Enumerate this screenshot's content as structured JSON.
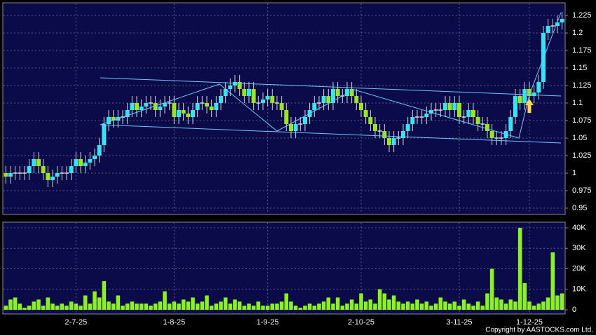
{
  "chart_data": {
    "type": "candlestick",
    "categories": [
      null,
      null,
      null,
      null,
      null,
      null,
      null,
      null,
      null,
      null,
      null,
      null,
      null,
      null,
      null,
      "2-7-25",
      null,
      null,
      null,
      null,
      null,
      null,
      null,
      null,
      null,
      null,
      null,
      null,
      null,
      null,
      null,
      null,
      null,
      null,
      null,
      null,
      "1-8-25",
      null,
      null,
      null,
      null,
      null,
      null,
      null,
      null,
      null,
      null,
      null,
      null,
      null,
      null,
      null,
      null,
      null,
      null,
      null,
      "1-9-25",
      null,
      null,
      null,
      null,
      null,
      null,
      null,
      null,
      null,
      null,
      null,
      null,
      null,
      null,
      null,
      null,
      null,
      null,
      null,
      "2-10-25",
      null,
      null,
      null,
      null,
      null,
      null,
      null,
      null,
      null,
      null,
      null,
      null,
      null,
      null,
      null,
      null,
      null,
      null,
      null,
      null,
      "3-11-25",
      null,
      null,
      null,
      null,
      null,
      null,
      null,
      null,
      null,
      null,
      null,
      null,
      null,
      null,
      "1-12-25",
      null,
      null,
      null,
      null,
      null,
      null,
      null
    ],
    "open": [
      1.0,
      0.995,
      1.0,
      1.0,
      1.0,
      1.0,
      1.01,
      1.02,
      1.01,
      1.0,
      0.99,
      0.995,
      1.0,
      1.0,
      1.0,
      1.01,
      1.02,
      1.01,
      1.015,
      1.02,
      1.025,
      1.04,
      1.07,
      1.08,
      1.075,
      1.08,
      1.08,
      1.09,
      1.1,
      1.09,
      1.095,
      1.1,
      1.1,
      1.09,
      1.095,
      1.1,
      1.1,
      1.08,
      1.09,
      1.085,
      1.08,
      1.09,
      1.1,
      1.1,
      1.095,
      1.09,
      1.1,
      1.11,
      1.12,
      1.125,
      1.13,
      1.12,
      1.11,
      1.12,
      1.1,
      1.1,
      1.105,
      1.11,
      1.1,
      1.1,
      1.09,
      1.07,
      1.06,
      1.07,
      1.07,
      1.08,
      1.09,
      1.1,
      1.1,
      1.11,
      1.1,
      1.12,
      1.11,
      1.11,
      1.12,
      1.11,
      1.1,
      1.09,
      1.08,
      1.07,
      1.06,
      1.06,
      1.05,
      1.04,
      1.05,
      1.05,
      1.06,
      1.07,
      1.08,
      1.08,
      1.08,
      1.085,
      1.09,
      1.09,
      1.09,
      1.1,
      1.09,
      1.1,
      1.08,
      1.08,
      1.09,
      1.08,
      1.07,
      1.07,
      1.06,
      1.05,
      1.05,
      1.05,
      1.06,
      1.08,
      1.11,
      1.1,
      1.12,
      1.11,
      1.115,
      1.13,
      1.2,
      1.21,
      1.21,
      1.215
    ],
    "high": [
      1.01,
      1.01,
      1.01,
      1.01,
      1.01,
      1.02,
      1.03,
      1.03,
      1.02,
      1.01,
      1.005,
      1.01,
      1.01,
      1.01,
      1.02,
      1.03,
      1.03,
      1.025,
      1.03,
      1.035,
      1.05,
      1.08,
      1.09,
      1.09,
      1.09,
      1.09,
      1.1,
      1.11,
      1.11,
      1.105,
      1.11,
      1.11,
      1.11,
      1.105,
      1.11,
      1.11,
      1.11,
      1.1,
      1.1,
      1.095,
      1.1,
      1.11,
      1.11,
      1.11,
      1.105,
      1.11,
      1.12,
      1.13,
      1.135,
      1.14,
      1.14,
      1.13,
      1.13,
      1.13,
      1.11,
      1.115,
      1.12,
      1.12,
      1.11,
      1.11,
      1.1,
      1.08,
      1.08,
      1.08,
      1.09,
      1.1,
      1.11,
      1.11,
      1.12,
      1.12,
      1.13,
      1.13,
      1.12,
      1.13,
      1.13,
      1.12,
      1.11,
      1.1,
      1.09,
      1.08,
      1.07,
      1.07,
      1.06,
      1.06,
      1.06,
      1.07,
      1.08,
      1.09,
      1.09,
      1.09,
      1.095,
      1.1,
      1.1,
      1.1,
      1.11,
      1.11,
      1.11,
      1.11,
      1.09,
      1.1,
      1.1,
      1.09,
      1.08,
      1.08,
      1.07,
      1.06,
      1.06,
      1.07,
      1.09,
      1.12,
      1.12,
      1.13,
      1.13,
      1.125,
      1.14,
      1.21,
      1.22,
      1.22,
      1.225,
      1.23
    ],
    "low": [
      0.985,
      0.985,
      0.99,
      0.99,
      0.99,
      0.99,
      1.0,
      1.0,
      0.99,
      0.98,
      0.98,
      0.985,
      0.99,
      0.99,
      0.99,
      1.0,
      1.0,
      1.0,
      1.005,
      1.01,
      1.015,
      1.03,
      1.06,
      1.065,
      1.065,
      1.07,
      1.07,
      1.08,
      1.08,
      1.08,
      1.085,
      1.09,
      1.08,
      1.08,
      1.085,
      1.09,
      1.07,
      1.07,
      1.075,
      1.07,
      1.07,
      1.08,
      1.09,
      1.085,
      1.08,
      1.08,
      1.09,
      1.1,
      1.11,
      1.115,
      1.11,
      1.1,
      1.1,
      1.09,
      1.09,
      1.09,
      1.095,
      1.09,
      1.09,
      1.08,
      1.06,
      1.05,
      1.05,
      1.06,
      1.06,
      1.07,
      1.08,
      1.09,
      1.09,
      1.09,
      1.09,
      1.1,
      1.1,
      1.1,
      1.1,
      1.09,
      1.08,
      1.07,
      1.06,
      1.05,
      1.05,
      1.04,
      1.03,
      1.03,
      1.04,
      1.04,
      1.05,
      1.06,
      1.07,
      1.07,
      1.07,
      1.075,
      1.08,
      1.08,
      1.08,
      1.08,
      1.08,
      1.07,
      1.07,
      1.07,
      1.07,
      1.06,
      1.06,
      1.05,
      1.04,
      1.04,
      1.04,
      1.04,
      1.05,
      1.07,
      1.09,
      1.09,
      1.1,
      1.1,
      1.105,
      1.12,
      1.19,
      1.2,
      1.2,
      1.205
    ],
    "close": [
      0.995,
      1.0,
      1.0,
      1.0,
      1.0,
      1.01,
      1.02,
      1.01,
      1.0,
      0.99,
      0.995,
      1.0,
      1.0,
      1.0,
      1.01,
      1.02,
      1.01,
      1.015,
      1.02,
      1.025,
      1.04,
      1.07,
      1.08,
      1.075,
      1.08,
      1.08,
      1.09,
      1.1,
      1.09,
      1.095,
      1.1,
      1.1,
      1.09,
      1.095,
      1.1,
      1.1,
      1.08,
      1.09,
      1.085,
      1.08,
      1.09,
      1.1,
      1.1,
      1.095,
      1.09,
      1.1,
      1.11,
      1.12,
      1.125,
      1.13,
      1.12,
      1.11,
      1.12,
      1.1,
      1.1,
      1.105,
      1.11,
      1.1,
      1.1,
      1.09,
      1.07,
      1.06,
      1.07,
      1.07,
      1.08,
      1.09,
      1.1,
      1.1,
      1.11,
      1.1,
      1.12,
      1.11,
      1.11,
      1.12,
      1.11,
      1.1,
      1.09,
      1.08,
      1.07,
      1.06,
      1.06,
      1.05,
      1.04,
      1.05,
      1.05,
      1.06,
      1.07,
      1.08,
      1.08,
      1.08,
      1.085,
      1.09,
      1.09,
      1.09,
      1.1,
      1.09,
      1.1,
      1.08,
      1.08,
      1.09,
      1.08,
      1.07,
      1.07,
      1.06,
      1.05,
      1.05,
      1.05,
      1.06,
      1.08,
      1.11,
      1.1,
      1.12,
      1.11,
      1.115,
      1.13,
      1.2,
      1.21,
      1.21,
      1.215,
      1.22
    ],
    "volume": [
      2000,
      5000,
      6000,
      3000,
      1000,
      2000,
      4000,
      5000,
      2000,
      6000,
      3000,
      2000,
      3000,
      2000,
      4000,
      3000,
      2000,
      7000,
      3000,
      9000,
      6000,
      14000,
      4000,
      3000,
      7000,
      2000,
      3000,
      4000,
      3000,
      3000,
      3000,
      2000,
      3000,
      4000,
      9000,
      3000,
      4000,
      3000,
      5000,
      4000,
      6000,
      3000,
      4000,
      7000,
      2000,
      3000,
      4000,
      6000,
      3000,
      5000,
      4000,
      2000,
      3000,
      2000,
      4000,
      2000,
      2000,
      3000,
      3000,
      4000,
      8000,
      4000,
      2000,
      1000,
      2000,
      3000,
      2000,
      3000,
      4000,
      6000,
      3000,
      6000,
      2000,
      3000,
      5000,
      3000,
      8000,
      4000,
      5000,
      3000,
      10000,
      8000,
      5000,
      7000,
      4000,
      3000,
      4000,
      3000,
      5000,
      3000,
      4000,
      2000,
      3000,
      6000,
      4000,
      3000,
      4000,
      2000,
      5000,
      3000,
      2000,
      4000,
      2000,
      8000,
      20000,
      6000,
      5000,
      3000,
      5000,
      4000,
      40000,
      13000,
      4000,
      2000,
      3000,
      4000,
      6000,
      28000,
      7000,
      8000
    ],
    "ylim": [
      0.942,
      1.242
    ],
    "yticks": [
      0.95,
      0.975,
      1,
      1.025,
      1.05,
      1.075,
      1.1,
      1.125,
      1.15,
      1.175,
      1.2,
      1.225
    ],
    "volume_ylim": [
      -1700,
      42400
    ],
    "volume_yticks": [
      0,
      {
        "value": 10000,
        "label": "10K"
      },
      {
        "value": 20000,
        "label": "20K"
      },
      {
        "value": 30000,
        "label": "30K"
      },
      {
        "value": 40000,
        "label": "40K"
      }
    ],
    "up_color": "#33e4f4",
    "down_color": "#9ae51f",
    "flat_color": "#dddddd",
    "volume_color": "#8cf21e",
    "grid": true,
    "copyright": "Copyright by AASTOCKS.com Ltd."
  }
}
